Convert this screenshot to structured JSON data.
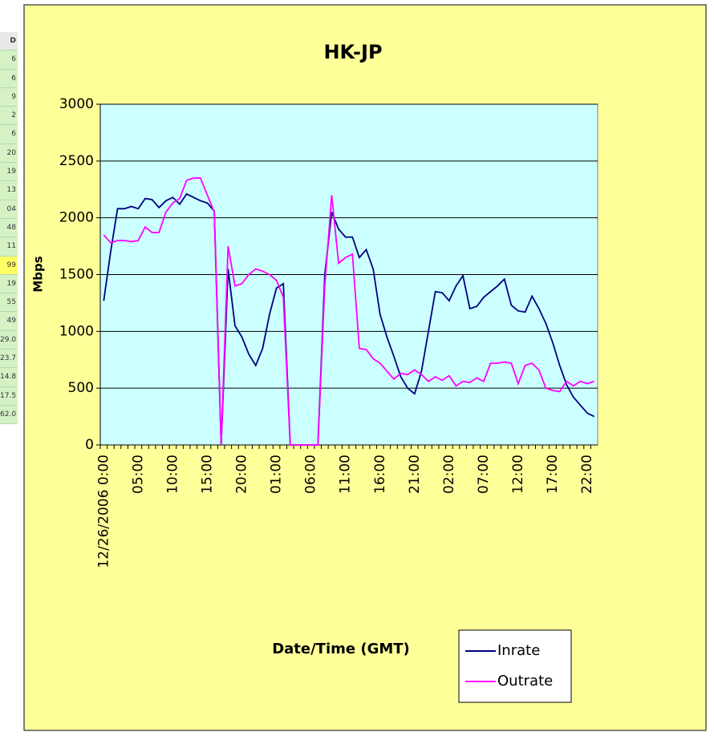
{
  "chart_data": {
    "type": "line",
    "title": "HK-JP",
    "x_label": "Date/Time (GMT)",
    "y_label": "Mbps",
    "categories": [
      "12/26/2006 0:00",
      null,
      null,
      null,
      null,
      "05:00",
      null,
      null,
      null,
      null,
      "10:00",
      null,
      null,
      null,
      null,
      "15:00",
      null,
      null,
      null,
      null,
      "20:00",
      null,
      null,
      null,
      null,
      "01:00",
      null,
      null,
      null,
      null,
      "06:00",
      null,
      null,
      null,
      null,
      "11:00",
      null,
      null,
      null,
      null,
      "16:00",
      null,
      null,
      null,
      null,
      "21:00",
      null,
      null,
      null,
      null,
      "02:00",
      null,
      null,
      null,
      null,
      "07:00",
      null,
      null,
      null,
      null,
      "12:00",
      null,
      null,
      null,
      null,
      "17:00",
      null,
      null,
      null,
      null,
      "22:00",
      null
    ],
    "series": [
      {
        "name": "Inrate",
        "color": "#000080",
        "values": [
          1270,
          1700,
          2080,
          2080,
          2100,
          2080,
          2170,
          2160,
          2090,
          2150,
          2180,
          2120,
          2210,
          2180,
          2150,
          2130,
          2060,
          0,
          1550,
          1050,
          950,
          800,
          700,
          850,
          1150,
          1380,
          1420,
          0,
          0,
          0,
          0,
          0,
          1500,
          2050,
          1900,
          1830,
          1830,
          1650,
          1720,
          1550,
          1150,
          950,
          780,
          600,
          500,
          450,
          650,
          1000,
          1350,
          1340,
          1270,
          1400,
          1490,
          1200,
          1220,
          1300,
          1350,
          1400,
          1460,
          1230,
          1180,
          1170,
          1310,
          1200,
          1070,
          900,
          700,
          530,
          420,
          350,
          280,
          250
        ]
      },
      {
        "name": "Outrate",
        "color": "#ff00ff",
        "values": [
          1850,
          1780,
          1800,
          1800,
          1790,
          1800,
          1920,
          1870,
          1870,
          2050,
          2130,
          2170,
          2330,
          2350,
          2350,
          2200,
          2050,
          0,
          1750,
          1400,
          1420,
          1500,
          1550,
          1530,
          1500,
          1450,
          1300,
          0,
          0,
          0,
          0,
          0,
          1400,
          2200,
          1600,
          1650,
          1680,
          850,
          840,
          760,
          720,
          650,
          580,
          630,
          620,
          660,
          620,
          560,
          600,
          570,
          610,
          520,
          560,
          550,
          590,
          560,
          720,
          720,
          730,
          720,
          540,
          700,
          720,
          660,
          500,
          480,
          470,
          560,
          520,
          560,
          540,
          560
        ]
      }
    ],
    "ylim": [
      0,
      3000
    ],
    "yticks": [
      0,
      500,
      1000,
      1500,
      2000,
      2500,
      3000
    ],
    "grid": true,
    "legend": "bottom-right",
    "plot_background": "#ccffff",
    "chart_background": "#ffff99"
  },
  "sheet_cells": [
    "D",
    "6",
    "6",
    "9",
    "2",
    "6",
    "20",
    "19",
    "13",
    "04",
    "48",
    "11",
    "99",
    "19",
    "55",
    "49",
    "29.0",
    "23.7",
    "14.8",
    "17.5",
    "62.0"
  ]
}
